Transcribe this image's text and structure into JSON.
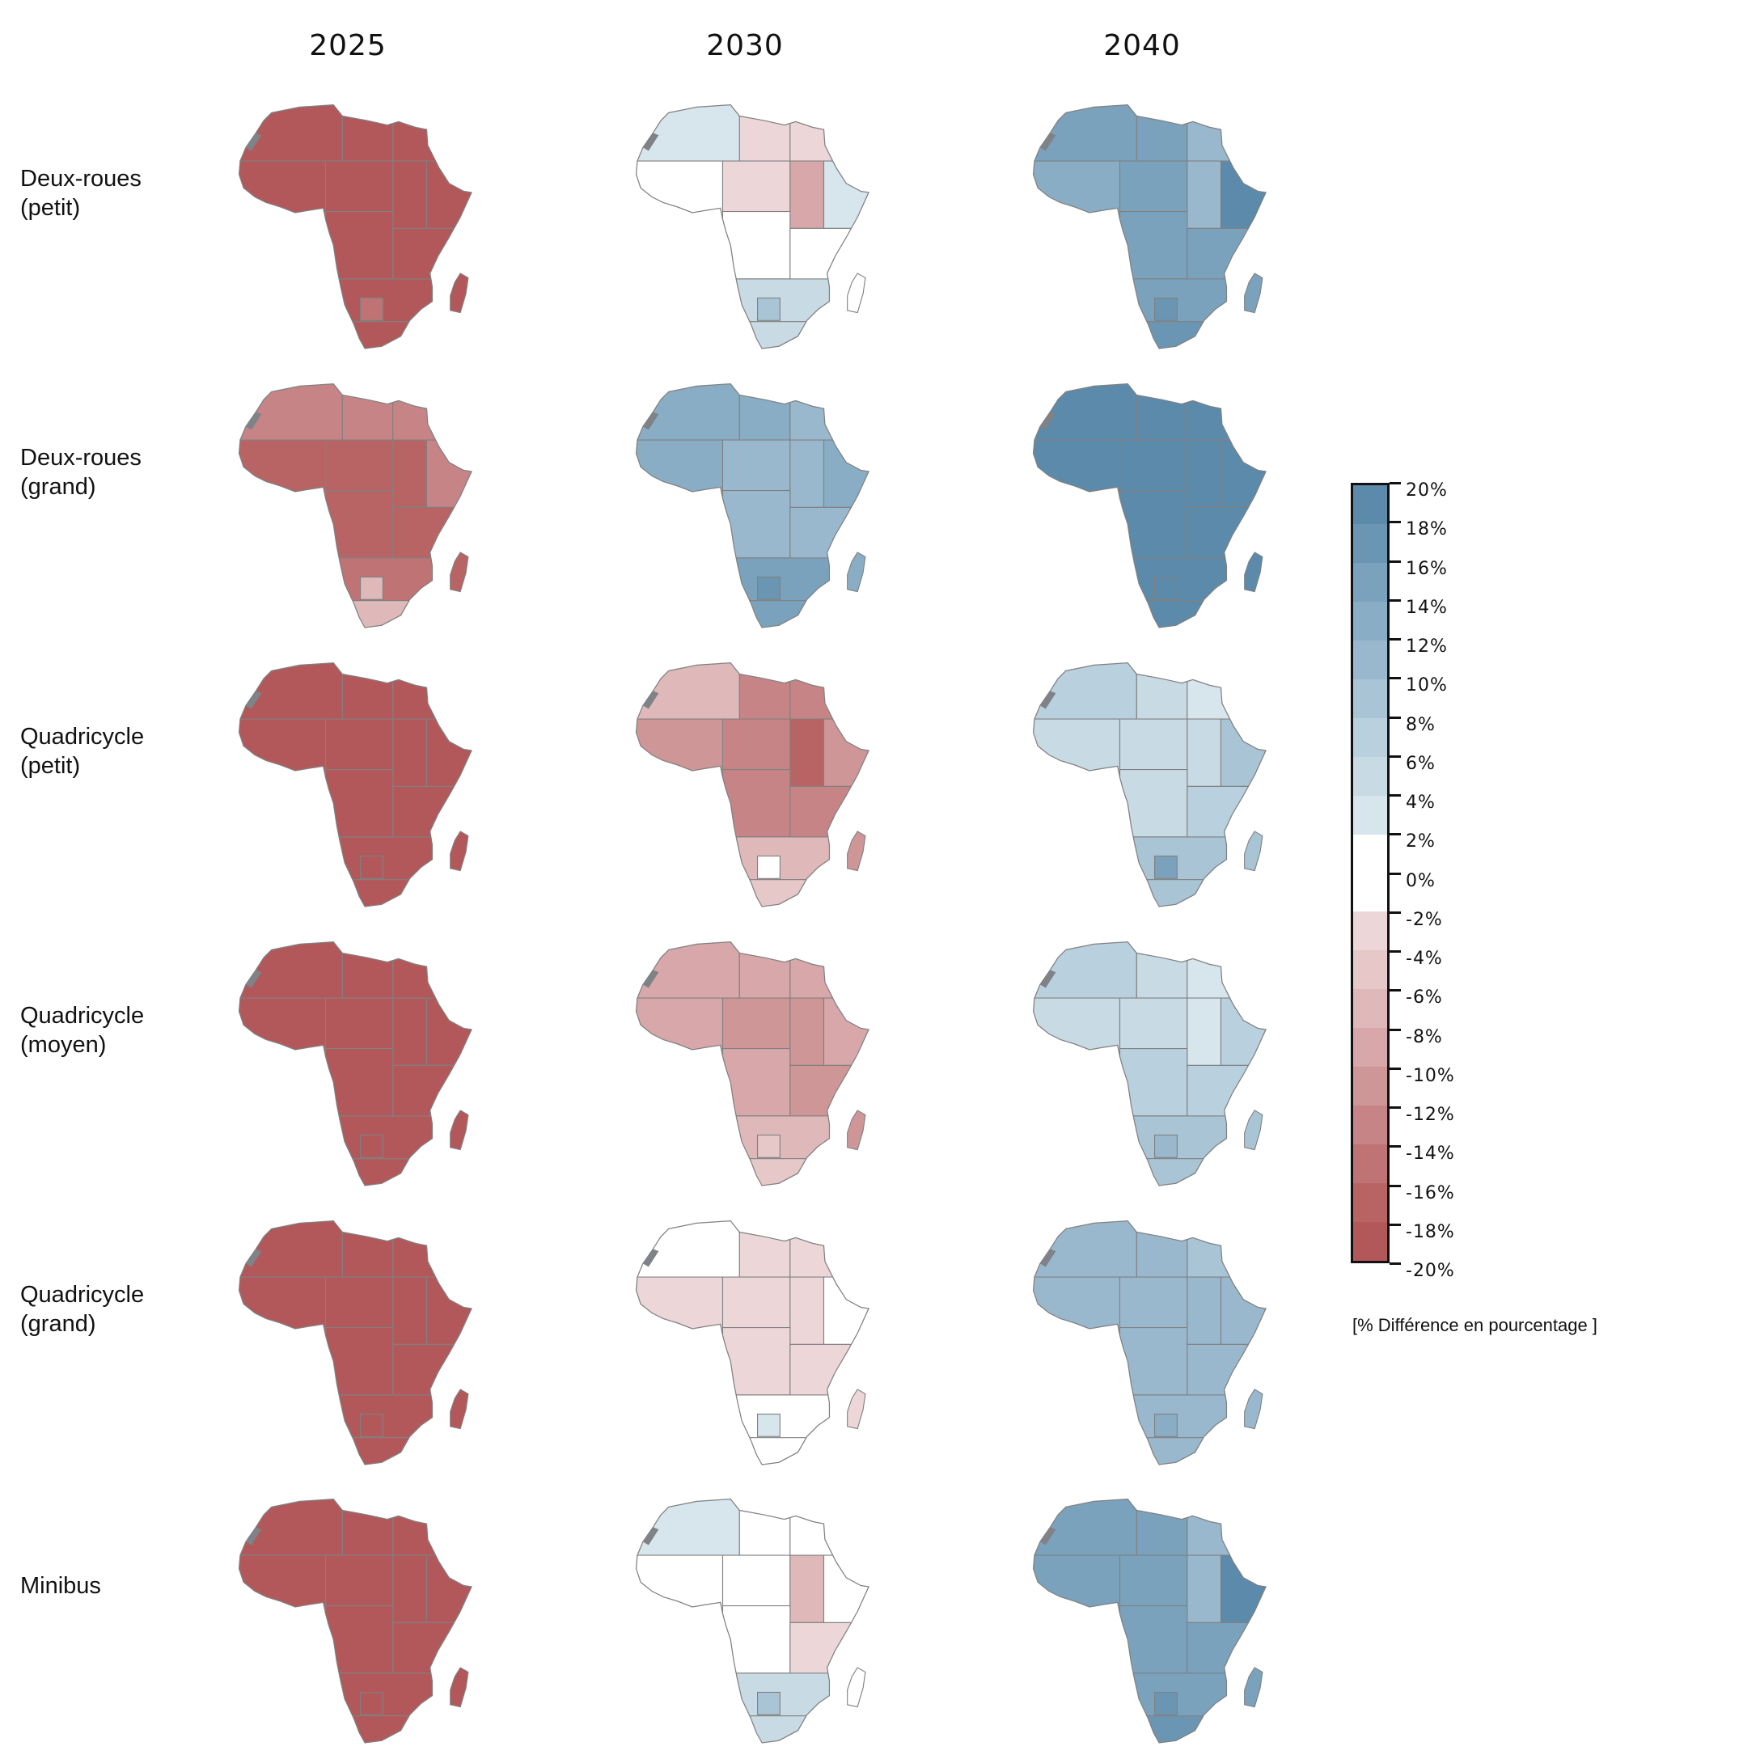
{
  "columns": [
    "2025",
    "2030",
    "2040"
  ],
  "rows": [
    {
      "label": "Deux-roues\n(petit)"
    },
    {
      "label": "Deux-roues\n(grand)"
    },
    {
      "label": "Quadricycle\n(petit)"
    },
    {
      "label": "Quadricycle\n(moyen)"
    },
    {
      "label": "Quadricycle\n(grand)"
    },
    {
      "label": "Minibus"
    }
  ],
  "chart_data": {
    "type": "choropleth-small-multiples",
    "value_unit": "% difference",
    "cells": [
      [
        [
          -19,
          -19,
          -19,
          -19,
          -19,
          -19,
          -19,
          -19,
          -19,
          -19,
          -14,
          -19,
          -19
        ],
        [
          4,
          -3,
          -3,
          0,
          -3,
          -9,
          4,
          0,
          0,
          5,
          10,
          6,
          0
        ],
        [
          16,
          16,
          12,
          14,
          16,
          12,
          20,
          16,
          16,
          16,
          18,
          18,
          16
        ]
      ],
      [
        [
          -13,
          -13,
          -13,
          -17,
          -17,
          -17,
          -13,
          -17,
          -17,
          -15,
          -7,
          -7,
          -17
        ],
        [
          14,
          14,
          12,
          14,
          12,
          12,
          14,
          12,
          12,
          16,
          18,
          16,
          14
        ],
        [
          19,
          19,
          19,
          19,
          19,
          19,
          19,
          19,
          19,
          19,
          19,
          19,
          19
        ]
      ],
      [
        [
          -19,
          -19,
          -19,
          -19,
          -19,
          -19,
          -19,
          -19,
          -19,
          -19,
          -19,
          -19,
          -19
        ],
        [
          -7,
          -13,
          -13,
          -11,
          -13,
          -17,
          -11,
          -13,
          -13,
          -7,
          0,
          -5,
          -11
        ],
        [
          8,
          6,
          4,
          6,
          6,
          6,
          10,
          6,
          8,
          10,
          16,
          10,
          10
        ]
      ],
      [
        [
          -19,
          -19,
          -19,
          -19,
          -19,
          -19,
          -19,
          -19,
          -19,
          -19,
          -19,
          -19,
          -19
        ],
        [
          -9,
          -9,
          -9,
          -9,
          -11,
          -11,
          -9,
          -9,
          -11,
          -7,
          -5,
          -5,
          -11
        ],
        [
          8,
          6,
          4,
          6,
          6,
          4,
          8,
          8,
          8,
          10,
          12,
          10,
          10
        ]
      ],
      [
        [
          -19,
          -19,
          -19,
          -19,
          -19,
          -19,
          -19,
          -19,
          -19,
          -19,
          -19,
          -19,
          -19
        ],
        [
          0,
          -3,
          -3,
          -3,
          -3,
          -3,
          0,
          -3,
          -3,
          0,
          4,
          0,
          -3
        ],
        [
          12,
          12,
          10,
          12,
          12,
          12,
          12,
          12,
          12,
          12,
          14,
          12,
          12
        ]
      ],
      [
        [
          -19,
          -19,
          -19,
          -19,
          -19,
          -19,
          -19,
          -19,
          -19,
          -19,
          -19,
          -19,
          -19
        ],
        [
          4,
          0,
          0,
          0,
          0,
          -7,
          0,
          0,
          -3,
          6,
          10,
          6,
          0
        ],
        [
          16,
          16,
          12,
          16,
          16,
          12,
          20,
          16,
          16,
          16,
          18,
          18,
          16
        ]
      ]
    ]
  },
  "legend": {
    "ticks": [
      "20%",
      "18%",
      "16%",
      "14%",
      "12%",
      "10%",
      "8%",
      "6%",
      "4%",
      "2%",
      "0%",
      "-2%",
      "-4%",
      "-6%",
      "-8%",
      "-10%",
      "-12%",
      "-14%",
      "-16%",
      "-18%",
      "-20%"
    ],
    "colors": [
      "#5b8aab",
      "#6a96b3",
      "#7aa2bd",
      "#89adc5",
      "#99b8cd",
      "#a9c4d4",
      "#b9d0de",
      "#c8dae4",
      "#d7e5ec",
      "#ffffff",
      "#ffffff",
      "#ecd6d8",
      "#e6c8c9",
      "#dfb8b9",
      "#d7a7a9",
      "#cf9697",
      "#c78486",
      "#bf7374",
      "#b86465",
      "#b3585a"
    ],
    "caption": "[% Différence en pourcentage ]"
  },
  "colors": {
    "border": "#808080",
    "disputed": "#7f8286"
  }
}
